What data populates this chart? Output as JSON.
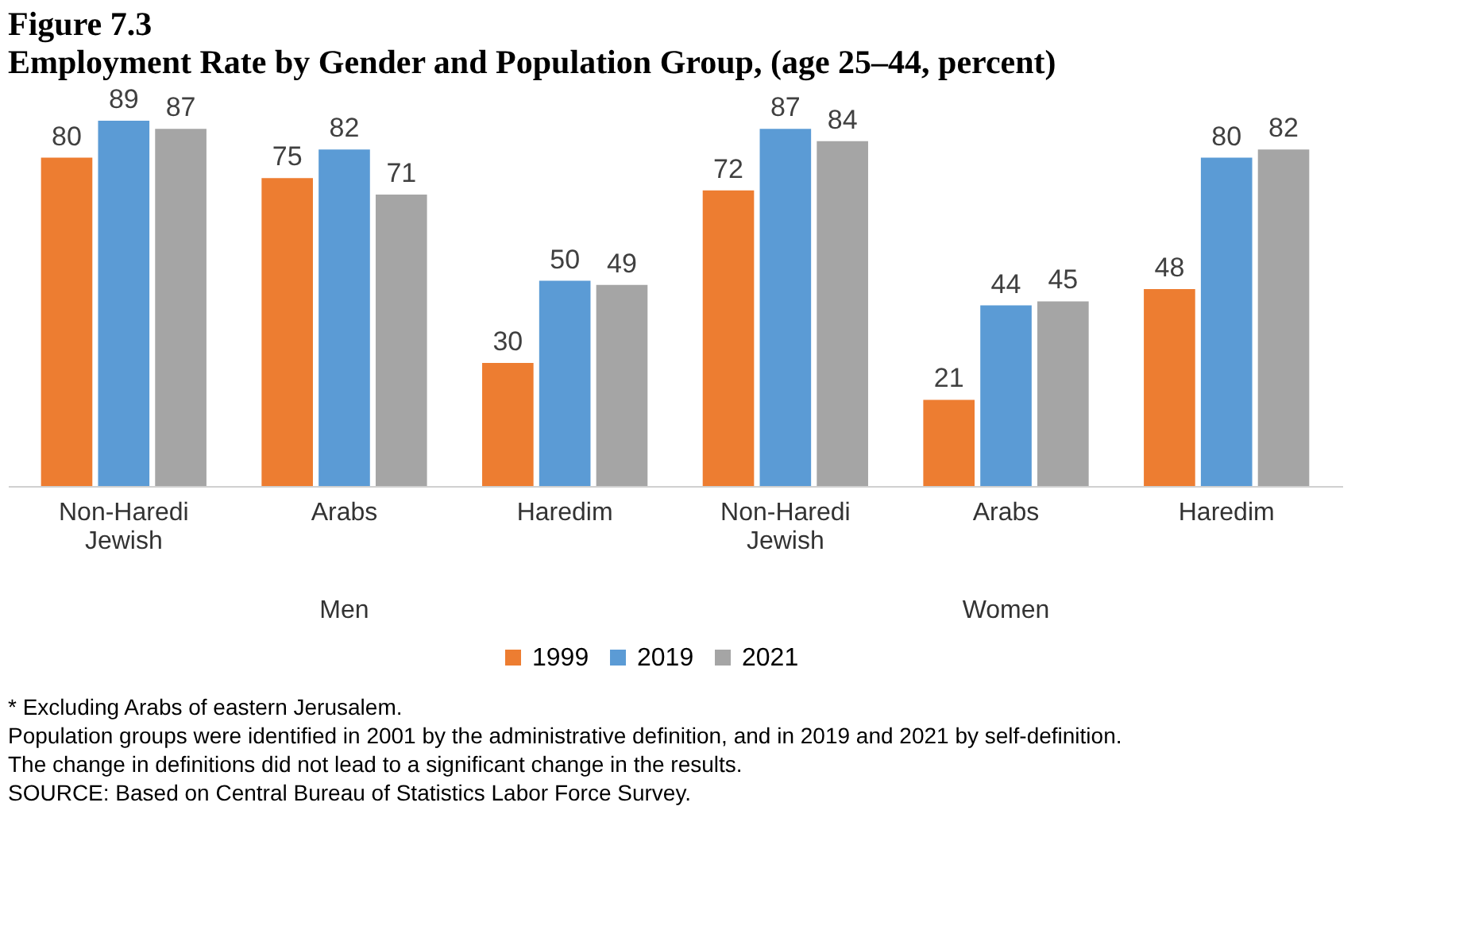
{
  "chart_data": {
    "type": "bar",
    "title": "Figure 7.3",
    "subtitle": "Employment Rate by Gender and Population Group, (age 25–44, percent)",
    "categories": [
      "Non-Haredi Jewish",
      "Arabs",
      "Haredim",
      "Non-Haredi Jewish",
      "Arabs",
      "Haredim"
    ],
    "series": [
      {
        "name": "1999",
        "color": "#ed7d31",
        "values": [
          80,
          75,
          30,
          72,
          21,
          48
        ]
      },
      {
        "name": "2019",
        "color": "#5b9bd5",
        "values": [
          89,
          82,
          50,
          87,
          44,
          80
        ]
      },
      {
        "name": "2021",
        "color": "#a5a5a5",
        "values": [
          87,
          71,
          49,
          84,
          45,
          82
        ]
      }
    ],
    "data_labels": true,
    "grid": false,
    "legend": "bottom",
    "annotations": [
      "Men",
      "Women",
      "* Excluding Arabs of eastern Jerusalem.",
      "Population groups were identified in 2001 by the administrative definition, and in 2019 and 2021 by self-definition.",
      "The change in definitions did not lead to a significant change in the results.",
      "SOURCE: Based on Central Bureau of Statistics Labor Force Survey."
    ]
  }
}
